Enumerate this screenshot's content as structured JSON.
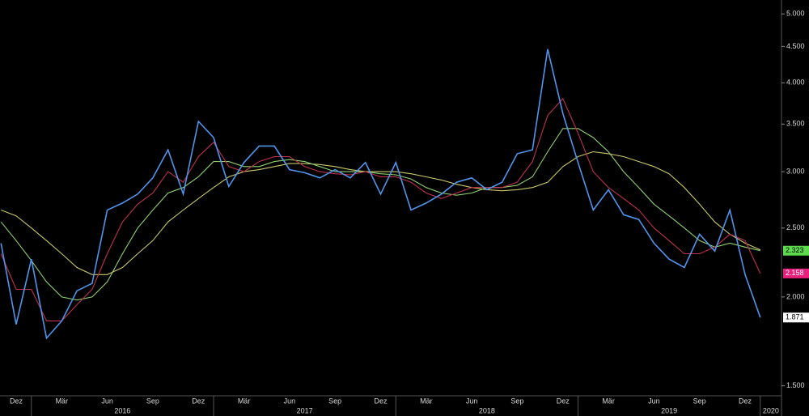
{
  "chart_data": {
    "type": "line",
    "log_scale": true,
    "grid": false,
    "x": [
      "2015-11",
      "2015-12",
      "2016-01",
      "2016-02",
      "2016-03",
      "2016-04",
      "2016-05",
      "2016-06",
      "2016-07",
      "2016-08",
      "2016-09",
      "2016-10",
      "2016-11",
      "2016-12",
      "2017-01",
      "2017-02",
      "2017-03",
      "2017-04",
      "2017-05",
      "2017-06",
      "2017-07",
      "2017-08",
      "2017-09",
      "2017-10",
      "2017-11",
      "2017-12",
      "2018-01",
      "2018-02",
      "2018-03",
      "2018-04",
      "2018-05",
      "2018-06",
      "2018-07",
      "2018-08",
      "2018-09",
      "2018-10",
      "2018-11",
      "2018-12",
      "2019-01",
      "2019-02",
      "2019-03",
      "2019-04",
      "2019-05",
      "2019-06",
      "2019-07",
      "2019-08",
      "2019-09",
      "2019-10",
      "2019-11",
      "2019-12",
      "2020-01"
    ],
    "series": [
      {
        "color": "#4f95ec",
        "values": [
          2.38,
          1.83,
          2.26,
          1.75,
          1.85,
          2.04,
          2.09,
          2.65,
          2.71,
          2.79,
          2.94,
          3.22,
          2.79,
          3.53,
          3.35,
          2.86,
          3.09,
          3.26,
          3.26,
          3.02,
          2.99,
          2.94,
          3.02,
          2.94,
          3.09,
          2.79,
          3.09,
          2.65,
          2.71,
          2.79,
          2.9,
          2.94,
          2.83,
          2.9,
          3.18,
          3.22,
          4.46,
          3.62,
          3.09,
          2.65,
          2.83,
          2.61,
          2.57,
          2.38,
          2.26,
          2.2,
          2.45,
          2.32,
          2.65,
          2.15,
          1.871
        ],
        "label_color": "#ffffff",
        "label_text": "#000000"
      },
      {
        "color": "#c0304f",
        "values": [
          2.3,
          2.05,
          2.05,
          1.85,
          1.85,
          1.95,
          2.05,
          2.3,
          2.55,
          2.7,
          2.8,
          3.0,
          2.9,
          3.15,
          3.3,
          3.05,
          3.0,
          3.1,
          3.15,
          3.15,
          3.05,
          3.0,
          2.98,
          2.97,
          3.0,
          2.95,
          2.95,
          2.9,
          2.8,
          2.75,
          2.8,
          2.85,
          2.85,
          2.85,
          2.9,
          3.1,
          3.6,
          3.8,
          3.4,
          3.0,
          2.85,
          2.75,
          2.65,
          2.5,
          2.4,
          2.3,
          2.3,
          2.35,
          2.45,
          2.4,
          2.158
        ],
        "label_color": "#e8207e",
        "label_text": "#ffffff"
      },
      {
        "color": "#8fd070",
        "values": [
          2.55,
          2.4,
          2.25,
          2.1,
          2.0,
          1.98,
          2.0,
          2.1,
          2.3,
          2.5,
          2.65,
          2.8,
          2.85,
          2.95,
          3.1,
          3.1,
          3.05,
          3.05,
          3.1,
          3.12,
          3.1,
          3.05,
          3.0,
          3.0,
          3.0,
          2.98,
          2.97,
          2.93,
          2.85,
          2.8,
          2.78,
          2.8,
          2.85,
          2.85,
          2.87,
          2.95,
          3.2,
          3.45,
          3.45,
          3.35,
          3.2,
          3.0,
          2.85,
          2.7,
          2.6,
          2.5,
          2.4,
          2.35,
          2.38,
          2.35,
          2.323
        ],
        "label_color": "#5cdc4c",
        "label_text": "#000000"
      },
      {
        "color": "#c9c86a",
        "values": [
          2.65,
          2.6,
          2.5,
          2.4,
          2.3,
          2.2,
          2.15,
          2.15,
          2.2,
          2.3,
          2.4,
          2.55,
          2.65,
          2.75,
          2.85,
          2.95,
          3.0,
          3.02,
          3.05,
          3.08,
          3.08,
          3.07,
          3.05,
          3.02,
          3.0,
          3.0,
          3.0,
          2.98,
          2.95,
          2.92,
          2.88,
          2.85,
          2.83,
          2.82,
          2.83,
          2.85,
          2.9,
          3.05,
          3.15,
          3.2,
          3.18,
          3.15,
          3.1,
          3.05,
          2.98,
          2.85,
          2.7,
          2.55,
          2.45,
          2.38,
          2.33
        ]
      }
    ],
    "ylim": [
      1.46,
      5.23
    ],
    "yticks": [
      {
        "value": 1.5,
        "label": "1.500"
      },
      {
        "value": 2,
        "label": "2.000"
      },
      {
        "value": 2.5,
        "label": "2.500"
      },
      {
        "value": 3,
        "label": "3.000"
      },
      {
        "value": 3.5,
        "label": "3.500"
      },
      {
        "value": 4,
        "label": "4.000"
      },
      {
        "value": 4.5,
        "label": "4.500"
      },
      {
        "value": 5,
        "label": "5.000"
      }
    ],
    "xticks": [
      {
        "value": "2015-12",
        "label": "Dez"
      },
      {
        "value": "2016-03",
        "label": "Mär"
      },
      {
        "value": "2016-06",
        "label": "Jun"
      },
      {
        "value": "2016-09",
        "label": "Sep"
      },
      {
        "value": "2016-12",
        "label": "Dez"
      },
      {
        "value": "2017-03",
        "label": "Mär"
      },
      {
        "value": "2017-06",
        "label": "Jun"
      },
      {
        "value": "2017-09",
        "label": "Sep"
      },
      {
        "value": "2017-12",
        "label": "Dez"
      },
      {
        "value": "2018-03",
        "label": "Mär"
      },
      {
        "value": "2018-06",
        "label": "Jun"
      },
      {
        "value": "2018-09",
        "label": "Sep"
      },
      {
        "value": "2018-12",
        "label": "Dez"
      },
      {
        "value": "2019-03",
        "label": "Mär"
      },
      {
        "value": "2019-06",
        "label": "Jun"
      },
      {
        "value": "2019-09",
        "label": "Sep"
      },
      {
        "value": "2019-12",
        "label": "Dez"
      }
    ],
    "year_ticks": [
      2016,
      2017,
      2018,
      2019,
      2020
    ]
  }
}
